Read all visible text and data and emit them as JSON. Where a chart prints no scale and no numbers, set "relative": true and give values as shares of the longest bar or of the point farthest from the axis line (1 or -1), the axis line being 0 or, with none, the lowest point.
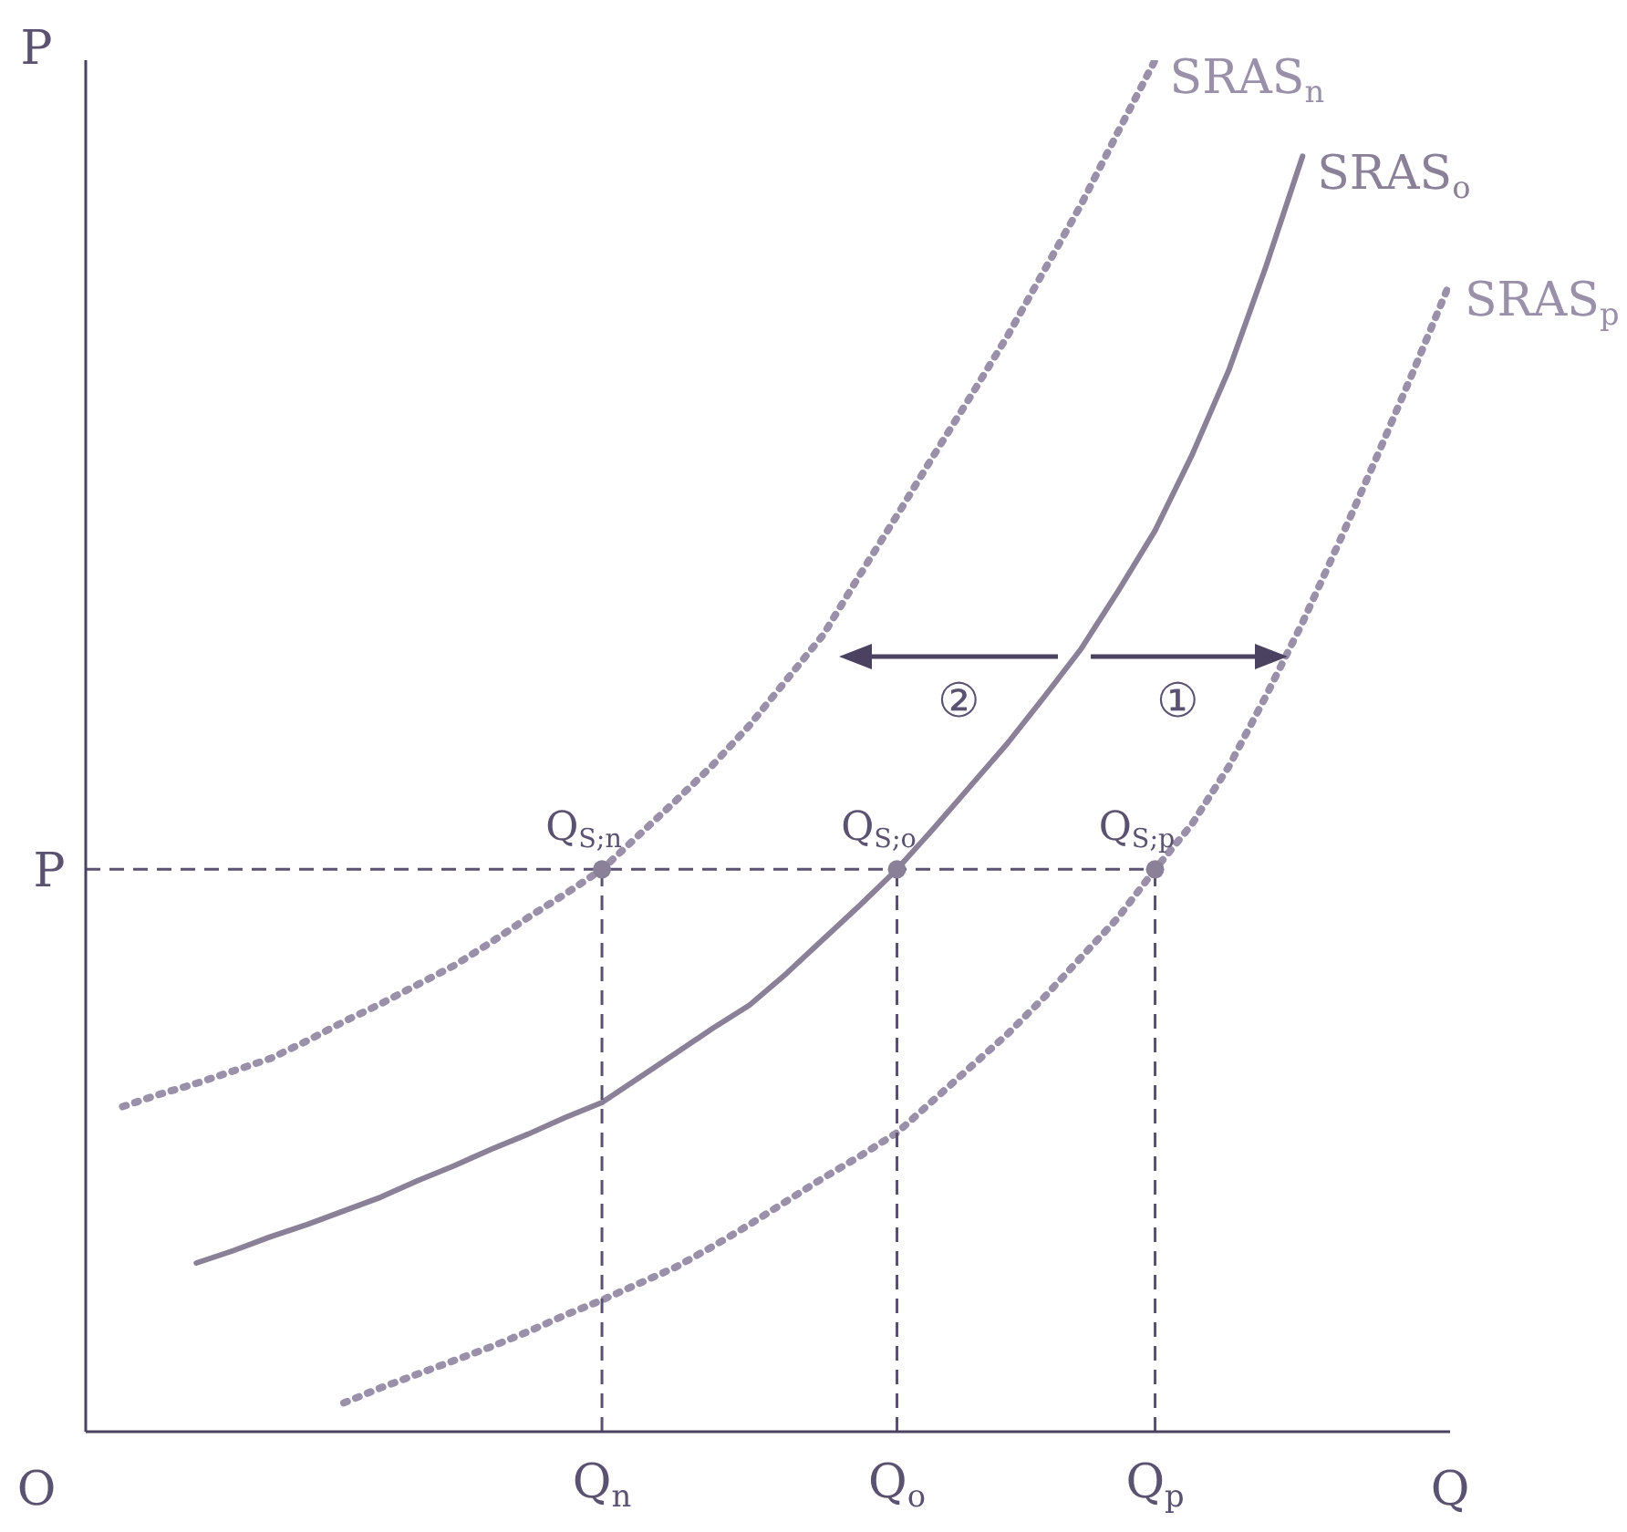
{
  "chart_data": {
    "type": "line",
    "relative": true,
    "xlabel": "Q",
    "ylabel": "P",
    "grid": false,
    "legend": false,
    "categories": [
      null,
      null,
      null,
      null,
      null,
      null,
      null,
      null,
      null,
      null,
      null,
      null,
      null,
      null,
      "Q$_{n}$",
      null,
      null,
      null,
      null,
      null,
      null,
      null,
      "Q$_{o}$",
      null,
      null,
      null,
      null,
      null,
      null,
      "Q$_{p}$",
      null,
      null,
      null,
      null,
      null,
      null,
      null,
      null
    ],
    "series": [
      {
        "name": "SRAS$_{n}$",
        "color": "#9a90aa",
        "line_style": "dotted",
        "values": [
          null,
          0.237,
          0.246,
          0.254,
          0.263,
          0.272,
          0.285,
          0.299,
          0.312,
          0.326,
          0.34,
          0.357,
          0.375,
          0.392,
          0.41,
          0.435,
          0.46,
          0.486,
          0.515,
          0.548,
          0.581,
          0.625,
          0.668,
          0.712,
          0.755,
          0.799,
          0.847,
          0.895,
          0.948,
          1.0,
          null,
          null,
          null,
          null,
          null,
          null,
          null,
          null
        ]
      },
      {
        "name": "SRAS$_{o}$",
        "color": "#8a8199",
        "line_style": "solid",
        "values": [
          null,
          null,
          null,
          0.123,
          0.132,
          0.142,
          0.151,
          0.161,
          0.171,
          0.183,
          0.194,
          0.206,
          0.217,
          0.229,
          0.24,
          0.258,
          0.276,
          0.294,
          0.311,
          0.334,
          0.359,
          0.384,
          0.41,
          0.44,
          0.471,
          0.502,
          0.536,
          0.571,
          0.613,
          0.657,
          0.712,
          0.774,
          0.849,
          0.93,
          null,
          null,
          null,
          null
        ]
      },
      {
        "name": "SRAS$_{p}$",
        "color": "#9a90aa",
        "line_style": "dotted",
        "values": [
          null,
          null,
          null,
          null,
          null,
          null,
          null,
          0.021,
          0.032,
          0.042,
          0.052,
          0.062,
          0.073,
          0.085,
          0.096,
          0.108,
          0.12,
          0.135,
          0.151,
          0.168,
          0.185,
          0.201,
          0.218,
          0.242,
          0.266,
          0.29,
          0.317,
          0.346,
          0.375,
          0.41,
          0.443,
          0.485,
          0.536,
          0.59,
          0.649,
          0.71,
          0.773,
          0.838
        ]
      },
      {
        "type": "line",
        "color": "#5a5270",
        "line_style": "dashed",
        "x": [
          "Q$_{n}$",
          "Q$_{n}$"
        ],
        "values": [
          0,
          0.41
        ]
      },
      {
        "type": "line",
        "color": "#5a5270",
        "line_style": "dashed",
        "x": [
          "Q$_{o}$",
          "Q$_{o}$"
        ],
        "values": [
          0,
          0.41
        ]
      },
      {
        "type": "line",
        "color": "#5a5270",
        "line_style": "dashed",
        "x": [
          "Q$_{p}$",
          "Q$_{p}$"
        ],
        "values": [
          0,
          0.41
        ]
      },
      {
        "type": "scatter",
        "color": "#8a8199",
        "marker": "circle",
        "x": [
          "Q$_{n}$",
          "Q$_{o}$",
          "Q$_{p}$"
        ],
        "values": [
          0.41,
          0.41,
          0.41
        ]
      }
    ],
    "ref_lines": [
      {
        "axis": "y",
        "value": 0.41,
        "color": "#5a5270",
        "line_style": "dashed"
      }
    ],
    "annotations": [
      {
        "text": "Q$_{S;n}$",
        "x": "Q$_{n}$",
        "y": 0.41
      },
      {
        "text": "Q$_{S;o}$",
        "x": "Q$_{o}$",
        "y": 0.41
      },
      {
        "text": "Q$_{S;p}$",
        "x": "Q$_{p}$",
        "y": 0.41
      },
      "P",
      "O",
      "②",
      "①"
    ]
  }
}
